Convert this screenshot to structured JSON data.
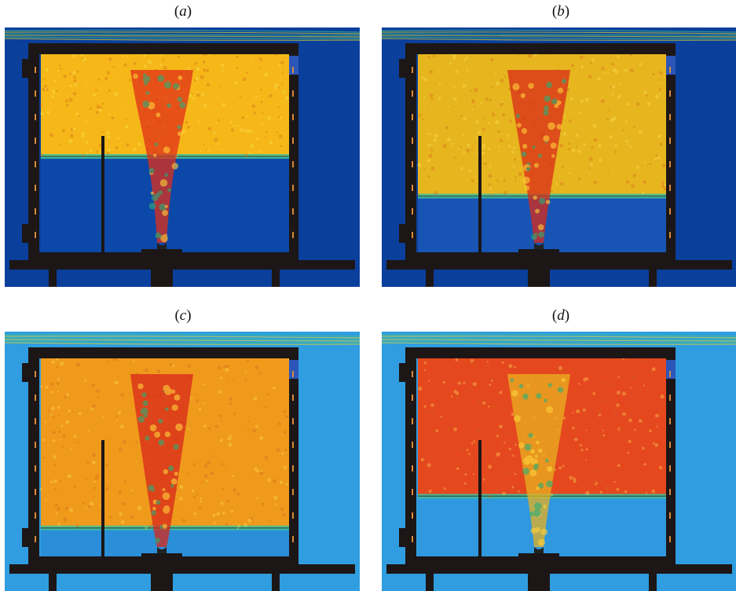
{
  "panels": [
    {
      "id": "a",
      "label": "a",
      "bg": "#0a3f9c",
      "upper": "#f5b818",
      "lower": "#0c48a8",
      "plume": "#e02f18",
      "interface_frac": 0.52
    },
    {
      "id": "b",
      "label": "b",
      "bg": "#0a3f9c",
      "upper": "#e7b51e",
      "lower": "#1754b4",
      "plume": "#d92b18",
      "interface_frac": 0.72
    },
    {
      "id": "c",
      "label": "c",
      "bg": "#2f9de0",
      "upper": "#f09a1c",
      "lower": "#2a8fd8",
      "plume": "#d8261a",
      "interface_frac": 0.86
    },
    {
      "id": "d",
      "label": "d",
      "bg": "#2f9de0",
      "upper": "#e5481e",
      "lower": "#2f98de",
      "plume": "#e8b020",
      "interface_frac": 0.7
    }
  ]
}
